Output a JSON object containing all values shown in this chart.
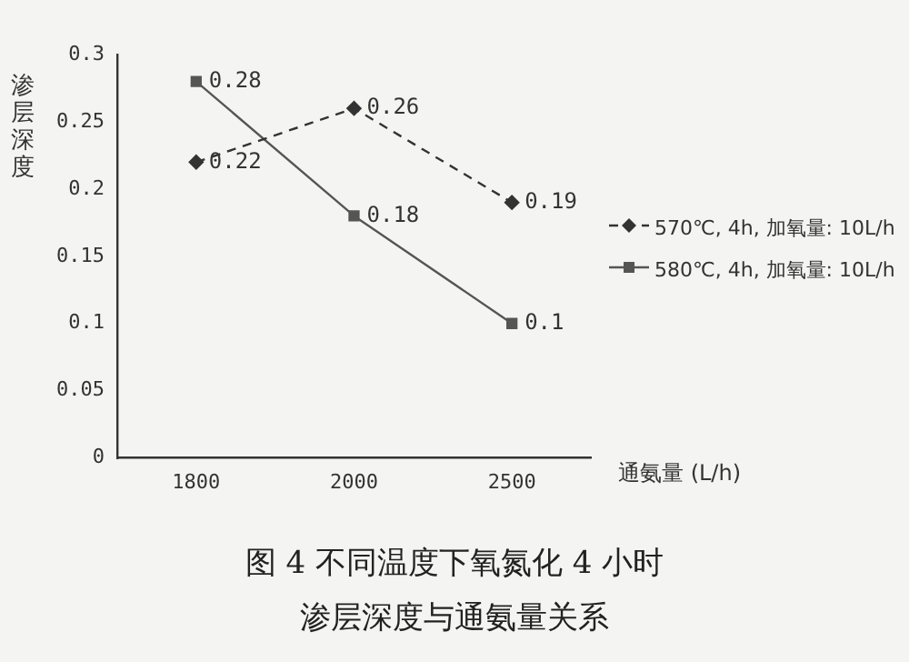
{
  "chart_data": {
    "type": "line",
    "title": "图 4  不同温度下氧氮化 4 小时渗层深度与通氨量关系",
    "ylabel": "渗层深度",
    "xlabel": "通氨量 (L/h)",
    "categories": [
      "1800",
      "2000",
      "2500"
    ],
    "series": [
      {
        "name": "570℃, 4h, 加氧量: 10L/h",
        "color": "#333333",
        "values": [
          0.22,
          0.26,
          0.19
        ],
        "marker": "diamond",
        "line_style": "dashed"
      },
      {
        "name": "580℃, 4h, 加氧量: 10L/h",
        "color": "#555555",
        "values": [
          0.28,
          0.18,
          0.1
        ],
        "marker": "square",
        "line_style": "solid"
      }
    ],
    "ylim": [
      0,
      0.3
    ],
    "yticks": [
      0,
      0.05,
      0.1,
      0.15,
      0.2,
      0.25,
      0.3
    ],
    "grid": false,
    "legend": "right",
    "data_labels": true
  }
}
